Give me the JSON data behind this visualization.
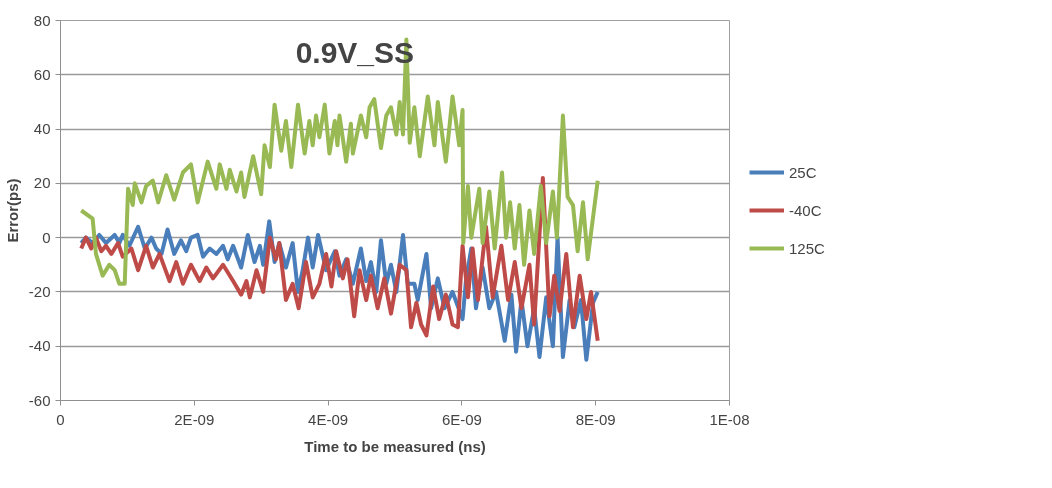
{
  "chart_data": {
    "type": "line",
    "title": "0.9V_SS",
    "xlabel": "Time to be measured (ns)",
    "ylabel": "Error(ps)",
    "xlim": [
      0,
      1e-08
    ],
    "ylim": [
      -60,
      80
    ],
    "xticks": [
      0,
      {
        "value": 2e-09,
        "label": "2E-09"
      },
      {
        "value": 4e-09,
        "label": "4E-09"
      },
      {
        "value": 6e-09,
        "label": "6E-09"
      },
      {
        "value": 8e-09,
        "label": "8E-09"
      },
      {
        "value": 1e-08,
        "label": "1E-08"
      }
    ],
    "yticks": [
      -60,
      -40,
      -20,
      0,
      20,
      40,
      60,
      80
    ],
    "grid": "y",
    "legend": "right",
    "marker": "none",
    "line_style": "solid",
    "series": [
      {
        "name": "25C",
        "color": "#4a7ebb",
        "x": [
          3.1e-10,
          3.8e-10,
          4.8e-10,
          5.8e-10,
          6.8e-10,
          8.1e-10,
          8.8e-10,
          9.3e-10,
          1.03e-09,
          1.16e-09,
          1.26e-09,
          1.36e-09,
          1.43e-09,
          1.51e-09,
          1.6e-09,
          1.7e-09,
          1.8e-09,
          1.88e-09,
          1.95e-09,
          2.05e-09,
          2.13e-09,
          2.23e-09,
          2.33e-09,
          2.43e-09,
          2.5e-09,
          2.58e-09,
          2.7e-09,
          2.8e-09,
          2.9e-09,
          2.98e-09,
          3.03e-09,
          3.12e-09,
          3.2e-09,
          3.27e-09,
          3.37e-09,
          3.47e-09,
          3.55e-09,
          3.62e-09,
          3.7e-09,
          3.77e-09,
          3.85e-09,
          3.97e-09,
          4.1e-09,
          4.17e-09,
          4.27e-09,
          4.37e-09,
          4.49e-09,
          4.57e-09,
          4.64e-09,
          4.72e-09,
          4.79e-09,
          4.87e-09,
          4.94e-09,
          5.02e-09,
          5.12e-09,
          5.19e-09,
          5.29e-09,
          5.34e-09,
          5.47e-09,
          5.54e-09,
          5.64e-09,
          5.74e-09,
          5.86e-09,
          6.01e-09,
          6.06e-09,
          6.14e-09,
          6.21e-09,
          6.31e-09,
          6.41e-09,
          6.51e-09,
          6.64e-09,
          6.74e-09,
          6.81e-09,
          6.89e-09,
          6.98e-09,
          7.08e-09,
          7.16e-09,
          7.26e-09,
          7.36e-09,
          7.43e-09,
          7.51e-09,
          7.61e-09,
          7.68e-09,
          7.78e-09,
          7.86e-09,
          7.96e-09,
          8.03e-09
        ],
        "values": [
          -2,
          0,
          -2,
          1,
          -2,
          1,
          -2,
          1,
          -3,
          4,
          -4,
          0,
          -4,
          -6,
          3,
          -6,
          -1,
          -5,
          0,
          1,
          -7,
          -4,
          -6,
          -3,
          -8,
          -3,
          -11,
          1,
          -9,
          -3,
          -10,
          6,
          -9,
          -2,
          -11,
          -2,
          -20,
          -12,
          0,
          -11,
          1,
          -12,
          -5,
          -14,
          -8,
          -17,
          -4,
          -16,
          -9,
          -20,
          -1,
          -17,
          -10,
          -20,
          1,
          -17,
          -17,
          -23,
          -6,
          -26,
          -15,
          -26,
          -20,
          -30,
          -16,
          -4,
          -26,
          -11,
          -26,
          -20,
          -38,
          -21,
          -42,
          -23,
          -40,
          -26,
          -44,
          -22,
          -40,
          0,
          -44,
          -23,
          -33,
          -23,
          -45,
          -24,
          -20
        ]
      },
      {
        "name": "-40C",
        "color": "#be4b48",
        "x": [
          3.1e-10,
          3.8e-10,
          4.6e-10,
          5.3e-10,
          6.1e-10,
          6.8e-10,
          7.6e-10,
          8.6e-10,
          9.3e-10,
          1.06e-09,
          1.16e-09,
          1.28e-09,
          1.38e-09,
          1.48e-09,
          1.63e-09,
          1.73e-09,
          1.83e-09,
          1.95e-09,
          2.08e-09,
          2.18e-09,
          2.28e-09,
          2.43e-09,
          2.58e-09,
          2.7e-09,
          2.78e-09,
          2.83e-09,
          2.93e-09,
          3.03e-09,
          3.13e-09,
          3.22e-09,
          3.27e-09,
          3.37e-09,
          3.47e-09,
          3.56e-09,
          3.67e-09,
          3.77e-09,
          3.87e-09,
          3.97e-09,
          4.05e-09,
          4.12e-09,
          4.22e-09,
          4.29e-09,
          4.39e-09,
          4.47e-09,
          4.57e-09,
          4.64e-09,
          4.74e-09,
          4.84e-09,
          4.94e-09,
          5.07e-09,
          5.17e-09,
          5.24e-09,
          5.32e-09,
          5.39e-09,
          5.47e-09,
          5.57e-09,
          5.66e-09,
          5.76e-09,
          5.86e-09,
          5.94e-09,
          6.01e-09,
          6.09e-09,
          6.16e-09,
          6.24e-09,
          6.36e-09,
          6.46e-09,
          6.59e-09,
          6.69e-09,
          6.79e-09,
          6.89e-09,
          7.01e-09,
          7.08e-09,
          7.21e-09,
          7.31e-09,
          7.38e-09,
          7.46e-09,
          7.56e-09,
          7.66e-09,
          7.76e-09,
          7.86e-09,
          7.93e-09,
          8.03e-09
        ],
        "values": [
          -4,
          0,
          -4,
          0,
          -5,
          -3,
          -6,
          -2,
          -7,
          -4,
          -12,
          -3,
          -11,
          -6,
          -16,
          -9,
          -17,
          -10,
          -16,
          -11,
          -15,
          -10,
          -16,
          -21,
          -16,
          -22,
          -12,
          -20,
          0,
          -8,
          -2,
          -23,
          -17,
          -26,
          -9,
          -22,
          -17,
          -6,
          -18,
          -5,
          -15,
          -8,
          -29,
          -12,
          -23,
          -14,
          -26,
          -15,
          -28,
          -10,
          -12,
          -33,
          -24,
          -32,
          -36,
          -18,
          -30,
          -21,
          -32,
          -33,
          -3,
          -22,
          -4,
          -23,
          4,
          -22,
          -3,
          -23,
          -9,
          -26,
          -10,
          -32,
          22,
          -29,
          -14,
          -27,
          -6,
          -33,
          -14,
          -30,
          -20,
          -38
        ]
      },
      {
        "name": "125C",
        "color": "#98b954",
        "x": [
          3.1e-10,
          4.8e-10,
          5.3e-10,
          6.3e-10,
          7.3e-10,
          8.1e-10,
          8.8e-10,
          9.6e-10,
          1.01e-09,
          1.08e-09,
          1.11e-09,
          1.21e-09,
          1.28e-09,
          1.38e-09,
          1.46e-09,
          1.58e-09,
          1.7e-09,
          1.83e-09,
          1.95e-09,
          2.05e-09,
          2.2e-09,
          2.33e-09,
          2.38e-09,
          2.48e-09,
          2.53e-09,
          2.63e-09,
          2.7e-09,
          2.75e-09,
          2.88e-09,
          3e-09,
          3.05e-09,
          3.13e-09,
          3.2e-09,
          3.3e-09,
          3.37e-09,
          3.45e-09,
          3.55e-09,
          3.65e-09,
          3.72e-09,
          3.77e-09,
          3.82e-09,
          3.87e-09,
          3.95e-09,
          4.02e-09,
          4.1e-09,
          4.14e-09,
          4.17e-09,
          4.27e-09,
          4.34e-09,
          4.37e-09,
          4.49e-09,
          4.57e-09,
          4.62e-09,
          4.69e-09,
          4.79e-09,
          4.87e-09,
          4.94e-09,
          5.02e-09,
          5.07e-09,
          5.12e-09,
          5.17e-09,
          5.22e-09,
          5.29e-09,
          5.37e-09,
          5.49e-09,
          5.59e-09,
          5.64e-09,
          5.76e-09,
          5.86e-09,
          5.96e-09,
          6.01e-09,
          6.02e-09,
          6.09e-09,
          6.14e-09,
          6.26e-09,
          6.31e-09,
          6.41e-09,
          6.49e-09,
          6.6e-09,
          6.66e-09,
          6.72e-09,
          6.79e-09,
          6.86e-09,
          6.93e-09,
          7.01e-09,
          7.08e-09,
          7.18e-09,
          7.26e-09,
          7.36e-09,
          7.42e-09,
          7.51e-09,
          7.58e-09,
          7.66e-09,
          7.73e-09,
          7.81e-09,
          7.88e-09,
          8.03e-09
        ],
        "values": [
          10,
          7,
          -6,
          -14,
          -10,
          -12,
          -17,
          -17,
          18,
          12,
          20,
          13,
          19,
          21,
          13,
          23,
          14,
          24,
          27,
          13,
          28,
          18,
          27,
          18,
          25,
          17,
          24,
          15,
          30,
          16,
          34,
          26,
          49,
          32,
          43,
          26,
          49,
          31,
          43,
          34,
          45,
          37,
          49,
          31,
          43,
          34,
          45,
          28,
          42,
          31,
          45,
          37,
          48,
          51,
          33,
          45,
          48,
          38,
          50,
          38,
          73,
          35,
          48,
          30,
          52,
          34,
          50,
          28,
          52,
          34,
          47,
          -2,
          19,
          0,
          18,
          -2,
          17,
          -4,
          24,
          0,
          13,
          -4,
          12,
          -10,
          10,
          -6,
          19,
          -2,
          17,
          0,
          45,
          15,
          12,
          -5,
          13,
          -8,
          21
        ]
      }
    ]
  }
}
